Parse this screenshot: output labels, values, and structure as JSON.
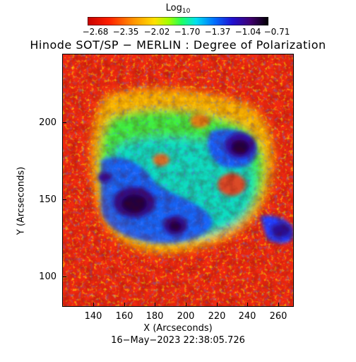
{
  "colorbar": {
    "label": "Log",
    "label_subscript": "10",
    "ticks": [
      "−2.68",
      "−2.35",
      "−2.02",
      "−1.70",
      "−1.37",
      "−1.04",
      "−0.71"
    ],
    "colors": [
      "#d00000",
      "#ff3000",
      "#ff8800",
      "#ffd800",
      "#b0ff00",
      "#30ff60",
      "#00e8e8",
      "#0080ff",
      "#2020e0",
      "#400080",
      "#1a0020",
      "#000000"
    ]
  },
  "title": "Hinode SOT/SP − MERLIN : Degree of Polarization",
  "axes": {
    "x_label": "X (Arcseconds)",
    "y_label": "Y (Arcseconds)",
    "x_ticks": [
      "140",
      "160",
      "180",
      "200",
      "220",
      "240",
      "260"
    ],
    "y_ticks": [
      "100",
      "150",
      "200"
    ]
  },
  "timestamp": "16−May−2023 22:38:05.726"
}
